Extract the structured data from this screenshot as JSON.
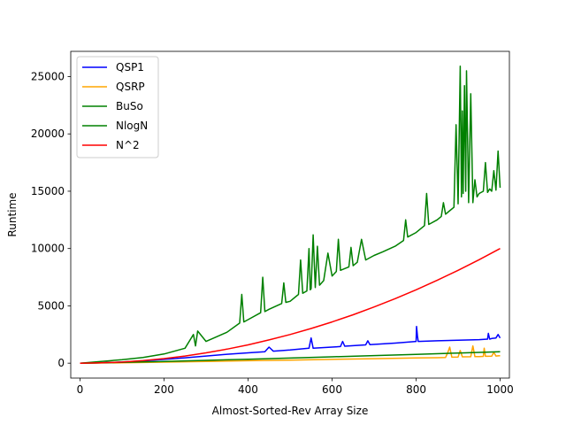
{
  "chart_data": {
    "type": "line",
    "title": "",
    "xlabel": "Almost-Sorted-Rev Array Size",
    "ylabel": "Runtime",
    "xlim": [
      -22,
      1022
    ],
    "ylim": [
      -1300,
      27200
    ],
    "xticks": [
      0,
      200,
      400,
      600,
      800,
      1000
    ],
    "yticks": [
      0,
      5000,
      10000,
      15000,
      20000,
      25000
    ],
    "grid": false,
    "legend_position": "top-left",
    "series": [
      {
        "name": "QSP1",
        "color": "#0000ff",
        "x": [
          0,
          50,
          100,
          150,
          200,
          250,
          300,
          350,
          400,
          440,
          450,
          460,
          500,
          545,
          550,
          555,
          600,
          620,
          625,
          630,
          680,
          685,
          690,
          750,
          800,
          801,
          803,
          805,
          850,
          900,
          950,
          970,
          972,
          975,
          980,
          990,
          995,
          1000
        ],
        "y": [
          0,
          30,
          100,
          200,
          330,
          470,
          620,
          780,
          900,
          1000,
          1400,
          1050,
          1150,
          1300,
          2200,
          1300,
          1400,
          1450,
          1900,
          1480,
          1600,
          1950,
          1620,
          1750,
          1900,
          3200,
          2400,
          1900,
          1950,
          2000,
          2050,
          2100,
          2600,
          2100,
          2150,
          2200,
          2500,
          2200
        ]
      },
      {
        "name": "QSRP",
        "color": "#ffa500",
        "x": [
          0,
          100,
          200,
          300,
          400,
          500,
          600,
          700,
          800,
          850,
          870,
          875,
          880,
          885,
          900,
          905,
          910,
          930,
          935,
          940,
          950,
          960,
          962,
          965,
          970,
          980,
          985,
          990,
          995,
          1000
        ],
        "y": [
          0,
          40,
          90,
          150,
          210,
          270,
          330,
          390,
          450,
          480,
          500,
          900,
          1400,
          520,
          540,
          1100,
          550,
          560,
          1500,
          570,
          580,
          590,
          1300,
          600,
          600,
          610,
          950,
          620,
          640,
          650
        ]
      },
      {
        "name": "BuSo",
        "color": "#008000",
        "x": [
          0,
          50,
          100,
          150,
          200,
          250,
          270,
          275,
          280,
          300,
          350,
          380,
          385,
          390,
          400,
          430,
          435,
          440,
          450,
          480,
          485,
          490,
          500,
          520,
          525,
          530,
          540,
          545,
          548,
          550,
          555,
          560,
          565,
          570,
          580,
          590,
          600,
          610,
          615,
          620,
          640,
          645,
          650,
          660,
          670,
          680,
          700,
          720,
          750,
          770,
          775,
          780,
          800,
          820,
          825,
          830,
          850,
          860,
          865,
          870,
          880,
          890,
          895,
          900,
          905,
          908,
          910,
          912,
          915,
          918,
          920,
          925,
          930,
          935,
          940,
          945,
          950,
          960,
          965,
          970,
          975,
          980,
          985,
          990,
          995,
          1000
        ],
        "y": [
          0,
          150,
          300,
          500,
          800,
          1300,
          2500,
          1500,
          2800,
          1900,
          2700,
          3500,
          6000,
          3600,
          3800,
          4400,
          7500,
          4500,
          4700,
          5200,
          7000,
          5300,
          5400,
          6000,
          9000,
          6100,
          6300,
          10000,
          6400,
          6500,
          11200,
          6600,
          10200,
          6800,
          7200,
          9600,
          7600,
          8000,
          10800,
          8100,
          8400,
          10100,
          8500,
          8800,
          10800,
          9000,
          9400,
          9700,
          10200,
          10700,
          12500,
          11000,
          11400,
          12000,
          14800,
          12100,
          12500,
          12800,
          14000,
          13000,
          13300,
          13600,
          20800,
          13900,
          25900,
          14500,
          22000,
          14800,
          24200,
          15000,
          25500,
          14000,
          23500,
          14000,
          16000,
          14500,
          14800,
          15000,
          17500,
          14900,
          15200,
          15000,
          16800,
          15100,
          18500,
          15300
        ]
      },
      {
        "name": "NlogN",
        "color": "#008000",
        "x": [
          0,
          100,
          200,
          300,
          400,
          500,
          600,
          700,
          800,
          900,
          1000
        ],
        "y": [
          0,
          66,
          153,
          247,
          346,
          448,
          554,
          662,
          771,
          883,
          997
        ]
      },
      {
        "name": "N^2",
        "color": "#ff0000",
        "x": [
          0,
          50,
          100,
          150,
          200,
          250,
          300,
          350,
          400,
          450,
          500,
          550,
          600,
          650,
          700,
          750,
          800,
          850,
          900,
          950,
          1000
        ],
        "y": [
          0,
          25,
          100,
          225,
          400,
          625,
          900,
          1225,
          1600,
          2025,
          2500,
          3025,
          3600,
          4225,
          4900,
          5625,
          6400,
          7225,
          8100,
          9025,
          10000
        ]
      }
    ]
  }
}
